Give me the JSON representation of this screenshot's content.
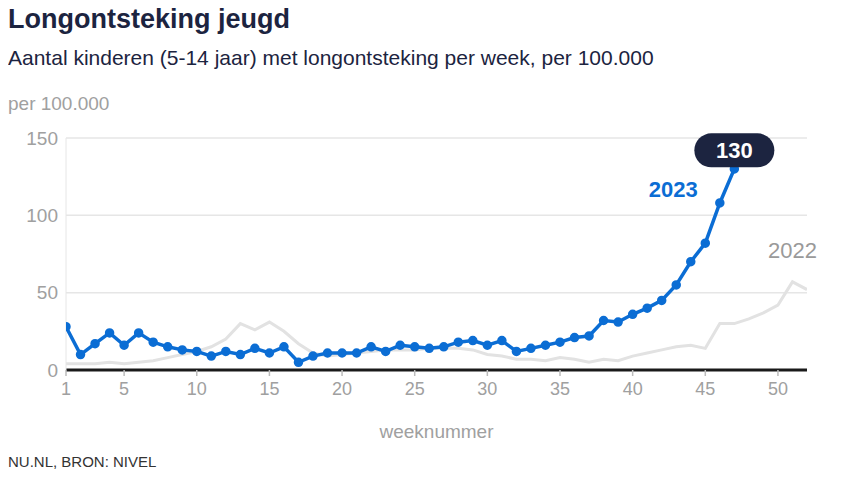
{
  "chart_data": {
    "type": "line",
    "title": "Longontsteking jeugd",
    "subtitle": "Aantal kinderen (5-14 jaar) met longontsteking per week, per 100.000",
    "y_label": "per 100.000",
    "x_label": "weeknummer",
    "source": "NU.NL, BRON: NIVEL",
    "x": [
      1,
      2,
      3,
      4,
      5,
      6,
      7,
      8,
      9,
      10,
      11,
      12,
      13,
      14,
      15,
      16,
      17,
      18,
      19,
      20,
      21,
      22,
      23,
      24,
      25,
      26,
      27,
      28,
      29,
      30,
      31,
      32,
      33,
      34,
      35,
      36,
      37,
      38,
      39,
      40,
      41,
      42,
      43,
      44,
      45,
      46,
      47,
      48,
      49,
      50,
      51,
      52
    ],
    "series": [
      {
        "name": "2022",
        "color": "#e2e2e2",
        "marker": "none",
        "values": [
          4,
          4,
          4,
          5,
          4,
          5,
          6,
          8,
          10,
          12,
          15,
          20,
          30,
          26,
          31,
          25,
          17,
          11,
          9,
          10,
          11,
          12,
          13,
          13,
          13,
          14,
          14,
          14,
          13,
          10,
          9,
          7,
          7,
          6,
          8,
          7,
          5,
          7,
          6,
          9,
          11,
          13,
          15,
          16,
          14,
          30,
          30,
          33,
          37,
          42,
          57,
          52
        ]
      },
      {
        "name": "2023",
        "color": "#0b6dd4",
        "marker": "circle",
        "values": [
          28,
          10,
          17,
          24,
          16,
          24,
          18,
          15,
          13,
          12,
          9,
          12,
          10,
          14,
          11,
          15,
          5,
          9,
          11,
          11,
          11,
          15,
          12,
          16,
          15,
          14,
          15,
          18,
          19,
          16,
          19,
          12,
          14,
          16,
          18,
          21,
          22,
          32,
          31,
          36,
          40,
          45,
          55,
          70,
          82,
          108,
          130,
          null,
          null,
          null,
          null,
          null
        ]
      }
    ],
    "xlim": [
      1,
      52
    ],
    "xticks": [
      1,
      5,
      10,
      15,
      20,
      25,
      30,
      35,
      40,
      45,
      50
    ],
    "ylim": [
      0,
      150
    ],
    "yticks": [
      0,
      50,
      100,
      150
    ],
    "grid": true,
    "annotations": [
      {
        "text": "2023",
        "x": 42.8,
        "y": 117,
        "color": "#0b6dd4"
      },
      {
        "text": "2022",
        "x": 51,
        "y": 77,
        "color": "#9a9a9a"
      },
      {
        "text": "130",
        "x": 47,
        "y": 142,
        "color": "#1c2440"
      }
    ]
  }
}
